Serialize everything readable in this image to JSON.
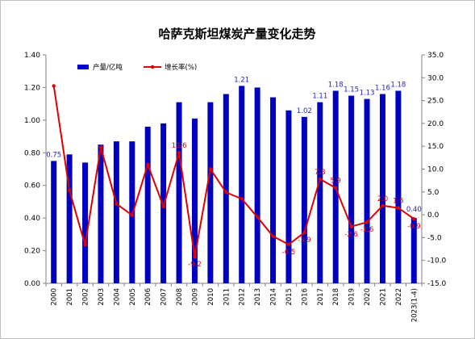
{
  "chart_data": {
    "type": "bar+line",
    "title": "哈萨克斯坦煤炭产量变化走势",
    "categories": [
      "2000",
      "2001",
      "2002",
      "2003",
      "2004",
      "2005",
      "2006",
      "2007",
      "2008",
      "2009",
      "2010",
      "2011",
      "2012",
      "2013",
      "2014",
      "2015",
      "2016",
      "2017",
      "2018",
      "2019",
      "2020",
      "2021",
      "2022",
      "2023(1-4)"
    ],
    "series": [
      {
        "name": "产量/亿吨",
        "type": "bar",
        "axis": "left",
        "color": "#0000c0",
        "values": [
          0.75,
          0.79,
          0.74,
          0.85,
          0.87,
          0.87,
          0.96,
          0.98,
          1.11,
          1.01,
          1.11,
          1.16,
          1.21,
          1.2,
          1.14,
          1.06,
          1.02,
          1.11,
          1.18,
          1.15,
          1.13,
          1.16,
          1.18,
          0.4
        ],
        "labels": [
          "0.75",
          "",
          "",
          "",
          "",
          "",
          "",
          "",
          "",
          "",
          "",
          "",
          "1.21",
          "",
          "",
          "",
          "1.02",
          "1.11",
          "1.18",
          "1.15",
          "1.13",
          "1.16",
          "1.18",
          "0.40"
        ]
      },
      {
        "name": "增长率(%)",
        "type": "line",
        "axis": "right",
        "color": "#e00000",
        "values": [
          28.2,
          5.3,
          -6.6,
          14.8,
          2.4,
          -0.1,
          11.0,
          1.8,
          13.6,
          -9.2,
          10.0,
          4.9,
          3.5,
          -0.5,
          -4.7,
          -6.5,
          -3.9,
          7.8,
          5.9,
          -2.6,
          -1.6,
          2.0,
          1.5,
          -0.9
        ],
        "labels": [
          "",
          "",
          "",
          "",
          "",
          "",
          "",
          "",
          "13.6",
          "-9.2",
          "",
          "",
          "",
          "",
          "",
          "-6.5",
          "-3.9",
          "7.8",
          "5.9",
          "-2.6",
          "-1.6",
          "2.0",
          "1.5",
          "-0.9"
        ]
      }
    ],
    "left_axis": {
      "min": 0,
      "max": 1.4,
      "step": 0.2,
      "ticks": [
        "0.00",
        "0.20",
        "0.40",
        "0.60",
        "0.80",
        "1.00",
        "1.20",
        "1.40"
      ]
    },
    "right_axis": {
      "min": -15,
      "max": 35,
      "step": 5,
      "ticks": [
        "-15.0",
        "-10.0",
        "-5.0",
        "0.0",
        "5.0",
        "10.0",
        "15.0",
        "20.0",
        "25.0",
        "30.0",
        "35.0"
      ]
    },
    "grid": false,
    "legend": "top-left"
  }
}
